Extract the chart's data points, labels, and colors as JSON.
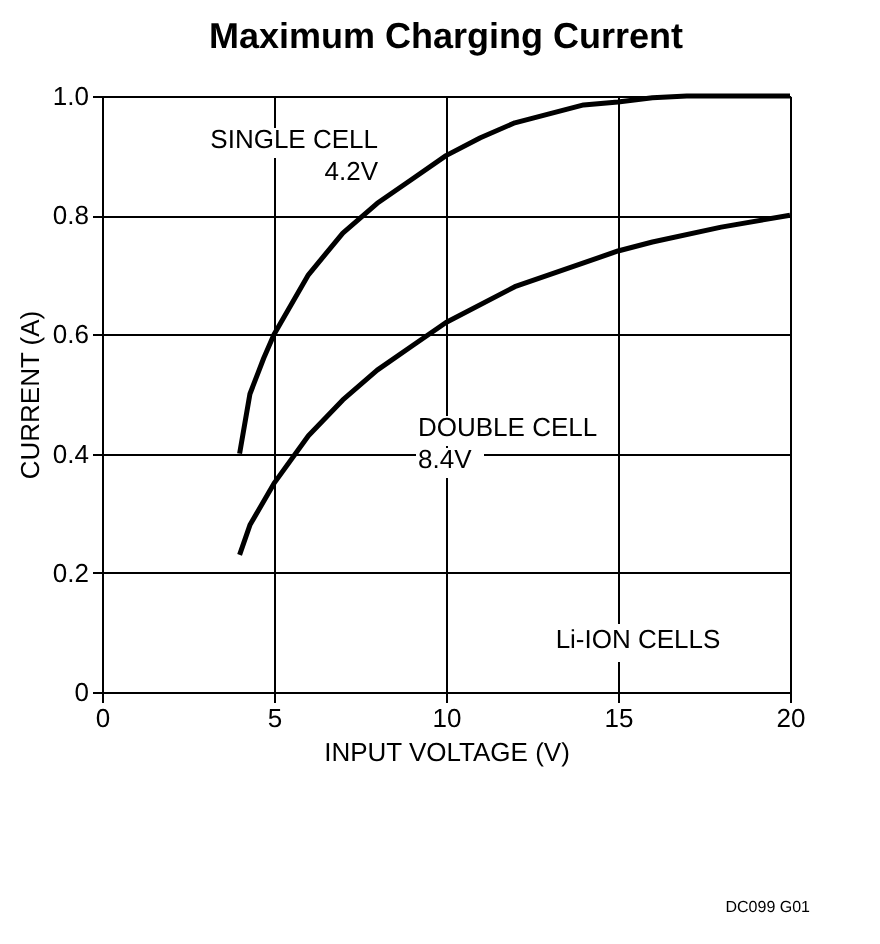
{
  "chart_data": {
    "type": "line",
    "title": "Maximum Charging Current",
    "xlabel": "INPUT VOLTAGE (V)",
    "ylabel": "CURRENT (A)",
    "xlim": [
      0,
      20
    ],
    "xticks": [
      0,
      5,
      10,
      15,
      20
    ],
    "ylim": [
      0,
      1.0
    ],
    "yticks": [
      {
        "value": 0,
        "label": "0"
      },
      {
        "value": 0.2,
        "label": "0.2"
      },
      {
        "value": 0.4,
        "label": "0.4"
      },
      {
        "value": 0.6,
        "label": "0.6"
      },
      {
        "value": 0.8,
        "label": "0.8"
      },
      {
        "value": 1.0,
        "label": "1.0"
      }
    ],
    "grid": true,
    "legend": false,
    "line_style": "solid",
    "series": [
      {
        "name": "SINGLE CELL\n4.2V",
        "color": "#000000",
        "x": [
          4,
          4.3,
          4.7,
          5,
          6,
          7,
          8,
          9,
          10,
          11,
          12,
          13,
          14,
          15,
          16,
          17,
          18,
          19,
          20
        ],
        "values": [
          0.4,
          0.5,
          0.56,
          0.6,
          0.7,
          0.77,
          0.82,
          0.86,
          0.9,
          0.93,
          0.955,
          0.97,
          0.985,
          0.99,
          0.997,
          1.0,
          1.0,
          1.0,
          1.0
        ]
      },
      {
        "name": "DOUBLE CELL\n8.4V",
        "color": "#000000",
        "x": [
          4,
          4.3,
          5,
          6,
          7,
          8,
          9,
          10,
          12,
          14,
          15,
          16,
          18,
          20
        ],
        "values": [
          0.23,
          0.28,
          0.35,
          0.43,
          0.49,
          0.54,
          0.58,
          0.62,
          0.68,
          0.72,
          0.74,
          0.755,
          0.78,
          0.8
        ]
      }
    ],
    "annotations": [
      "Li-ION CELLS",
      "DC099 G01"
    ]
  }
}
